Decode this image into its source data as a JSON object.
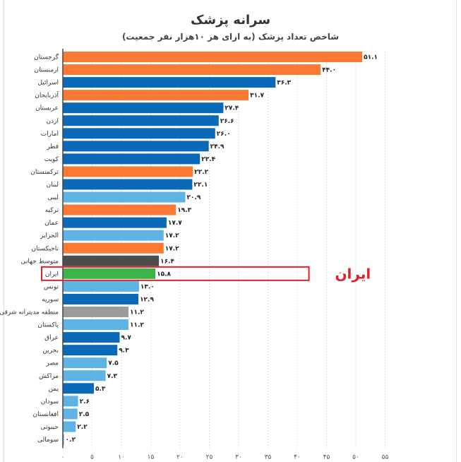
{
  "chart_data": {
    "type": "bar",
    "orientation": "horizontal",
    "title": "سرانه پزشک",
    "subtitle": "شاخص تعداد پزشک (به ازای هر ۱۰هزار نفر جمعیت)",
    "xlim": [
      0,
      55
    ],
    "x_ticks": [
      0,
      5,
      10,
      15,
      20,
      25,
      30,
      35,
      40,
      45,
      50,
      55
    ],
    "x_tick_labels": [
      "۰",
      "۵",
      "۱۰",
      "۱۵",
      "۲۰",
      "۲۵",
      "۳۰",
      "۳۵",
      "۴۰",
      "۴۵",
      "۵۰",
      "۵۵"
    ],
    "grid": true,
    "colors": {
      "orange": "#fa7a35",
      "blue": "#0b6ab8",
      "light_blue": "#5fb2e4",
      "dark_gray": "#4d4d4d",
      "gray": "#9b9b9b",
      "green": "#3cb44a",
      "highlight": "#e0202a"
    },
    "bars": [
      {
        "category": "گرجستان",
        "value": 51.1,
        "label": "۵۱.۱",
        "color": "orange"
      },
      {
        "category": "ارمنستان",
        "value": 44.0,
        "label": "۴۴.۰",
        "color": "orange"
      },
      {
        "category": "اسرائیل",
        "value": 36.3,
        "label": "۳۶.۳",
        "color": "blue"
      },
      {
        "category": "آذربایجان",
        "value": 31.7,
        "label": "۳۱.۷",
        "color": "orange"
      },
      {
        "category": "عربستان",
        "value": 27.4,
        "label": "۲۷.۴",
        "color": "blue"
      },
      {
        "category": "اردن",
        "value": 26.6,
        "label": "۲۶.۶",
        "color": "blue"
      },
      {
        "category": "امارات",
        "value": 26.0,
        "label": "۲۶.۰",
        "color": "blue"
      },
      {
        "category": "قطر",
        "value": 24.9,
        "label": "۲۴.۹",
        "color": "blue"
      },
      {
        "category": "کویت",
        "value": 23.4,
        "label": "۲۳.۴",
        "color": "blue"
      },
      {
        "category": "ترکمنستان",
        "value": 22.2,
        "label": "۲۲.۲",
        "color": "orange"
      },
      {
        "category": "لبنان",
        "value": 22.1,
        "label": "۲۲.۱",
        "color": "blue"
      },
      {
        "category": "لیبی",
        "value": 20.9,
        "label": "۲۰.۹",
        "color": "light_blue"
      },
      {
        "category": "ترکیه",
        "value": 19.3,
        "label": "۱۹.۳",
        "color": "orange"
      },
      {
        "category": "عمان",
        "value": 17.7,
        "label": "۱۷.۷",
        "color": "blue"
      },
      {
        "category": "الجزایر",
        "value": 17.2,
        "label": "۱۷.۲",
        "color": "light_blue"
      },
      {
        "category": "تاجیکستان",
        "value": 17.2,
        "label": "۱۷.۲",
        "color": "orange"
      },
      {
        "category": "متوسط جهانی",
        "value": 16.4,
        "label": "۱۶.۴",
        "color": "dark_gray"
      },
      {
        "category": "ایران",
        "value": 15.8,
        "label": "۱۵.۸",
        "color": "green"
      },
      {
        "category": "تونس",
        "value": 13.0,
        "label": "۱۳.۰",
        "color": "light_blue"
      },
      {
        "category": "سوریه",
        "value": 12.9,
        "label": "۱۲.۹",
        "color": "blue"
      },
      {
        "category": "منطقه مدیترانه شرقی",
        "value": 11.2,
        "label": "۱۱.۲",
        "color": "gray"
      },
      {
        "category": "پاکستان",
        "value": 11.2,
        "label": "۱۱.۲",
        "color": "light_blue"
      },
      {
        "category": "عراق",
        "value": 9.7,
        "label": "۹.۷",
        "color": "blue"
      },
      {
        "category": "بحرین",
        "value": 9.3,
        "label": "۹.۳",
        "color": "blue"
      },
      {
        "category": "مصر",
        "value": 7.5,
        "label": "۷.۵",
        "color": "light_blue"
      },
      {
        "category": "مراکش",
        "value": 7.3,
        "label": "۷.۳",
        "color": "light_blue"
      },
      {
        "category": "یمن",
        "value": 5.3,
        "label": "۵.۳",
        "color": "blue"
      },
      {
        "category": "سودان",
        "value": 2.6,
        "label": "۲.۶",
        "color": "light_blue"
      },
      {
        "category": "افغانستان",
        "value": 2.5,
        "label": "۲.۵",
        "color": "light_blue"
      },
      {
        "category": "جیبوتی",
        "value": 2.2,
        "label": "۲.۲",
        "color": "light_blue"
      },
      {
        "category": "سومالی",
        "value": 0.2,
        "label": "۰.۲",
        "color": "light_blue"
      }
    ],
    "highlight": {
      "category": "ایران",
      "label": "ایران"
    }
  }
}
